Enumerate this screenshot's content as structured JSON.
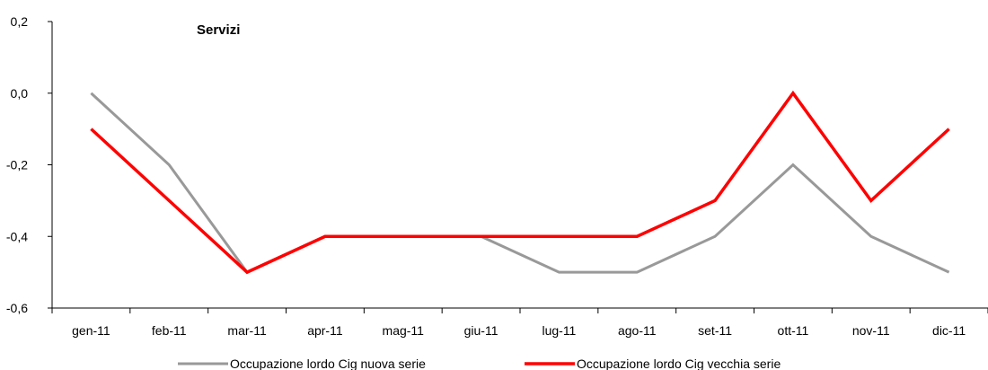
{
  "chart_data": {
    "type": "line",
    "title": "Servizi",
    "xlabel": "",
    "ylabel": "",
    "categories": [
      "gen-11",
      "feb-11",
      "mar-11",
      "apr-11",
      "mag-11",
      "giu-11",
      "lug-11",
      "ago-11",
      "set-11",
      "ott-11",
      "nov-11",
      "dic-11"
    ],
    "ylim": [
      -0.6,
      0.2
    ],
    "yticks": [
      "0,2",
      "0,0",
      "-0,2",
      "-0,4",
      "-0,6"
    ],
    "ytick_values": [
      0.2,
      0.0,
      -0.2,
      -0.4,
      -0.6
    ],
    "grid": false,
    "legend_position": "bottom",
    "series": [
      {
        "name": "Occupazione lordo Cig nuova serie",
        "color": "#999999",
        "values": [
          0.0,
          -0.2,
          -0.5,
          -0.4,
          -0.4,
          -0.4,
          -0.5,
          -0.5,
          -0.4,
          -0.2,
          -0.4,
          -0.5
        ]
      },
      {
        "name": "Occupazione lordo Cig vecchia serie",
        "color": "#ff0000",
        "values": [
          -0.1,
          -0.3,
          -0.5,
          -0.4,
          -0.4,
          -0.4,
          -0.4,
          -0.4,
          -0.3,
          0.0,
          -0.3,
          -0.1
        ]
      }
    ]
  }
}
